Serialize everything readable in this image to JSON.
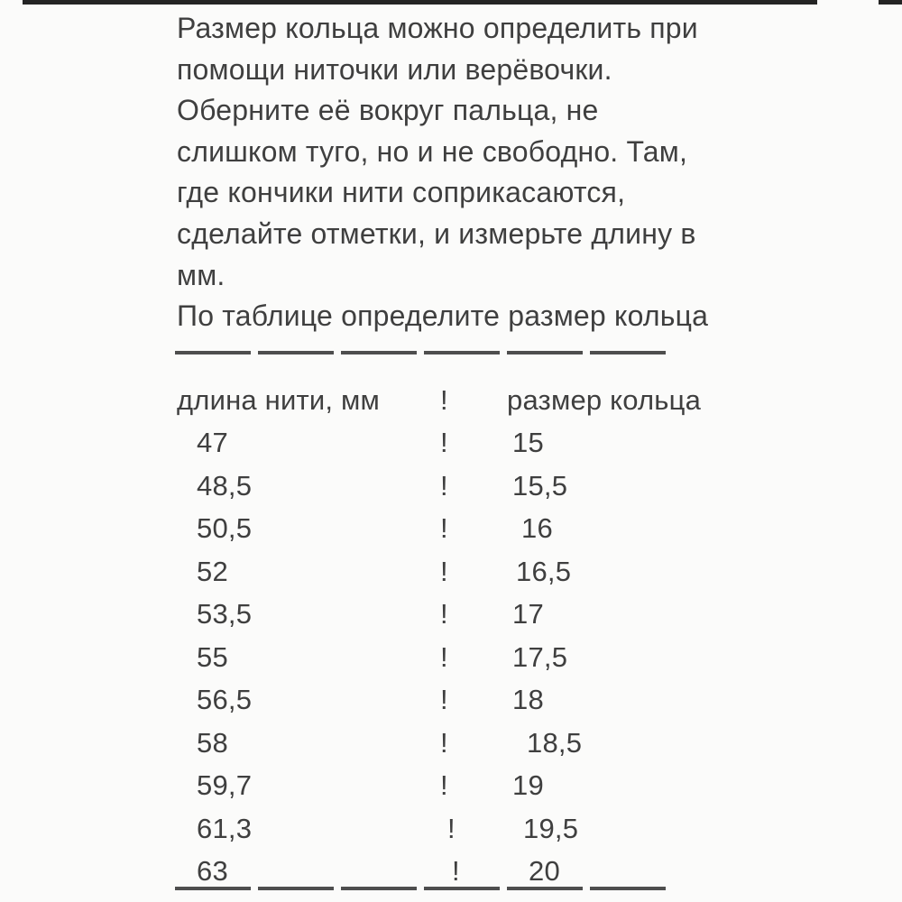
{
  "page": {
    "type": "ring-size-guide",
    "background_color": "#fbfbfa",
    "text_color": "#3f3f3f",
    "divider_color": "#4e4e4e",
    "top_bar_color": "#242424"
  },
  "intro": {
    "lines": [
      "Размер кольца можно определить при",
      "помощи ниточки или верёвочки.",
      "Оберните её вокруг пальца, не",
      "слишком туго, но и не свободно. Там,",
      "где кончики нити соприкасаются,",
      "сделайте отметки, и измерьте длину в",
      "мм.",
      "По таблице определите размер кольца"
    ]
  },
  "size_table": {
    "columns": {
      "length": "длина нити, мм",
      "separator": "!",
      "size": "размер кольца"
    },
    "rows": [
      {
        "length": "47",
        "separator": "!",
        "size": "15"
      },
      {
        "length": "48,5",
        "separator": "!",
        "size": "15,5"
      },
      {
        "length": "50,5",
        "separator": "!",
        "size": "16"
      },
      {
        "length": "52",
        "separator": "!",
        "size": "16,5"
      },
      {
        "length": "53,5",
        "separator": "!",
        "size": "17"
      },
      {
        "length": "55",
        "separator": "!",
        "size": "17,5"
      },
      {
        "length": "56,5",
        "separator": "!",
        "size": "18"
      },
      {
        "length": "58",
        "separator": "!",
        "size": "18,5"
      },
      {
        "length": "59,7",
        "separator": "!",
        "size": "19"
      },
      {
        "length": "61,3",
        "separator": "!",
        "size": "19,5"
      },
      {
        "length": "63",
        "separator": "!",
        "size": "20"
      }
    ]
  }
}
